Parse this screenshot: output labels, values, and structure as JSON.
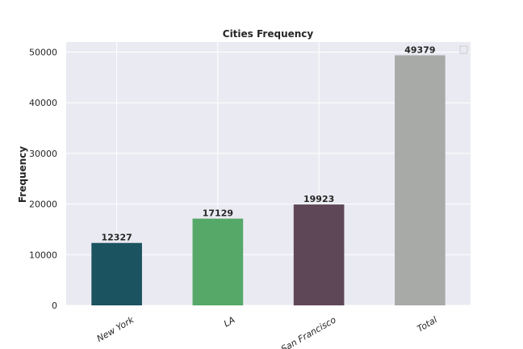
{
  "chart_data": {
    "type": "bar",
    "title": "Cities Frequency",
    "xlabel": "",
    "ylabel": "Frequency",
    "categories": [
      "New York",
      "LA",
      "San Francisco",
      "Total"
    ],
    "values": [
      12327,
      17129,
      19923,
      49379
    ],
    "colors": [
      "#1b5360",
      "#56a868",
      "#5e4858",
      "#a8aaa8"
    ],
    "ylim": [
      0,
      52000
    ],
    "yticks": [
      "0",
      "10000",
      "20000",
      "30000",
      "40000",
      "50000"
    ],
    "ytick_values": [
      0,
      10000,
      20000,
      30000,
      40000,
      50000
    ],
    "grid": true,
    "legend": "top-right, empty"
  },
  "style": {
    "plot_background": "#eaeaf2",
    "grid_color": "#ffffff"
  }
}
